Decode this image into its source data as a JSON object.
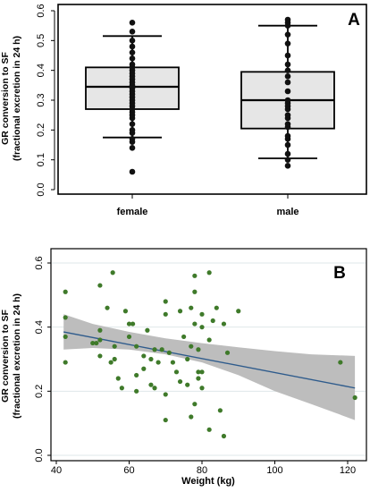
{
  "chart_data": [
    {
      "type": "box",
      "panel_label": "A",
      "ylabel": "GR conversion to SF",
      "ylabel2": "(fractional excretion in 24 h)",
      "categories": [
        "female",
        "male"
      ],
      "yticks": [
        "0.0",
        "0.1",
        "0.2",
        "0.3",
        "0.4",
        "0.5",
        "0.6"
      ],
      "ylim": [
        0,
        0.6
      ],
      "boxes": [
        {
          "category": "female",
          "whisker_low": 0.175,
          "q1": 0.27,
          "median": 0.345,
          "q3": 0.41,
          "whisker_high": 0.515
        },
        {
          "category": "male",
          "whisker_low": 0.105,
          "q1": 0.205,
          "median": 0.3,
          "q3": 0.395,
          "whisker_high": 0.55
        }
      ],
      "points": {
        "female": [
          0.06,
          0.14,
          0.16,
          0.17,
          0.19,
          0.2,
          0.22,
          0.24,
          0.25,
          0.26,
          0.27,
          0.28,
          0.29,
          0.3,
          0.31,
          0.32,
          0.33,
          0.34,
          0.35,
          0.36,
          0.37,
          0.38,
          0.39,
          0.4,
          0.41,
          0.42,
          0.44,
          0.46,
          0.48,
          0.5,
          0.53,
          0.56
        ],
        "male": [
          0.08,
          0.1,
          0.12,
          0.15,
          0.17,
          0.18,
          0.21,
          0.22,
          0.24,
          0.25,
          0.27,
          0.28,
          0.29,
          0.3,
          0.33,
          0.36,
          0.38,
          0.4,
          0.42,
          0.45,
          0.49,
          0.52,
          0.55,
          0.56,
          0.57
        ]
      },
      "colors": {
        "box_fill": "#e6e6e6",
        "point": "#111111"
      }
    },
    {
      "type": "scatter",
      "panel_label": "B",
      "ylabel": "GR conversion to SF",
      "ylabel2": "(fractional excretion in 24 h)",
      "xlabel": "Weight (kg)",
      "xticks": [
        "40",
        "60",
        "80",
        "100",
        "120"
      ],
      "yticks": [
        "0.0",
        "0.2",
        "0.4",
        "0.6"
      ],
      "xlim": [
        39,
        123
      ],
      "ylim": [
        -0.02,
        0.62
      ],
      "regression": {
        "x": [
          42,
          122
        ],
        "y": [
          0.385,
          0.21
        ]
      },
      "band_upper": {
        "x": [
          42,
          50,
          60,
          70,
          80,
          90,
          100,
          110,
          122
        ],
        "y": [
          0.44,
          0.41,
          0.385,
          0.365,
          0.35,
          0.337,
          0.325,
          0.315,
          0.31
        ]
      },
      "band_lower": {
        "x": [
          42,
          50,
          60,
          70,
          80,
          90,
          100,
          110,
          122
        ],
        "y": [
          0.33,
          0.335,
          0.33,
          0.315,
          0.29,
          0.25,
          0.2,
          0.16,
          0.11
        ]
      },
      "points": [
        {
          "x": 42.5,
          "y": 0.51
        },
        {
          "x": 42.5,
          "y": 0.43
        },
        {
          "x": 42.5,
          "y": 0.37
        },
        {
          "x": 42.5,
          "y": 0.29
        },
        {
          "x": 50,
          "y": 0.35
        },
        {
          "x": 51,
          "y": 0.35
        },
        {
          "x": 52,
          "y": 0.53
        },
        {
          "x": 52,
          "y": 0.39
        },
        {
          "x": 52,
          "y": 0.36
        },
        {
          "x": 52,
          "y": 0.31
        },
        {
          "x": 54,
          "y": 0.46
        },
        {
          "x": 55,
          "y": 0.29
        },
        {
          "x": 55.5,
          "y": 0.57
        },
        {
          "x": 56,
          "y": 0.34
        },
        {
          "x": 56,
          "y": 0.3
        },
        {
          "x": 57,
          "y": 0.24
        },
        {
          "x": 58,
          "y": 0.21
        },
        {
          "x": 59,
          "y": 0.45
        },
        {
          "x": 60,
          "y": 0.41
        },
        {
          "x": 60,
          "y": 0.37
        },
        {
          "x": 61,
          "y": 0.41
        },
        {
          "x": 62,
          "y": 0.34
        },
        {
          "x": 62,
          "y": 0.25
        },
        {
          "x": 62,
          "y": 0.2
        },
        {
          "x": 64,
          "y": 0.31
        },
        {
          "x": 64,
          "y": 0.27
        },
        {
          "x": 65,
          "y": 0.39
        },
        {
          "x": 66,
          "y": 0.3
        },
        {
          "x": 66,
          "y": 0.22
        },
        {
          "x": 67,
          "y": 0.21
        },
        {
          "x": 67,
          "y": 0.33
        },
        {
          "x": 68,
          "y": 0.29
        },
        {
          "x": 69,
          "y": 0.33
        },
        {
          "x": 70,
          "y": 0.48
        },
        {
          "x": 70,
          "y": 0.44
        },
        {
          "x": 70,
          "y": 0.19
        },
        {
          "x": 70,
          "y": 0.11
        },
        {
          "x": 71,
          "y": 0.32
        },
        {
          "x": 72,
          "y": 0.29
        },
        {
          "x": 73,
          "y": 0.26
        },
        {
          "x": 74,
          "y": 0.45
        },
        {
          "x": 74,
          "y": 0.23
        },
        {
          "x": 75,
          "y": 0.37
        },
        {
          "x": 76,
          "y": 0.3
        },
        {
          "x": 76,
          "y": 0.22
        },
        {
          "x": 77,
          "y": 0.46
        },
        {
          "x": 77,
          "y": 0.34
        },
        {
          "x": 77,
          "y": 0.12
        },
        {
          "x": 78,
          "y": 0.56
        },
        {
          "x": 78,
          "y": 0.51
        },
        {
          "x": 78,
          "y": 0.41
        },
        {
          "x": 78,
          "y": 0.16
        },
        {
          "x": 79,
          "y": 0.33
        },
        {
          "x": 79,
          "y": 0.26
        },
        {
          "x": 79,
          "y": 0.24
        },
        {
          "x": 80,
          "y": 0.44
        },
        {
          "x": 80,
          "y": 0.4
        },
        {
          "x": 80,
          "y": 0.26
        },
        {
          "x": 80,
          "y": 0.21
        },
        {
          "x": 82,
          "y": 0.57
        },
        {
          "x": 82,
          "y": 0.36
        },
        {
          "x": 82,
          "y": 0.08
        },
        {
          "x": 83,
          "y": 0.42
        },
        {
          "x": 84,
          "y": 0.46
        },
        {
          "x": 85,
          "y": 0.14
        },
        {
          "x": 86,
          "y": 0.41
        },
        {
          "x": 86,
          "y": 0.06
        },
        {
          "x": 87,
          "y": 0.32
        },
        {
          "x": 90,
          "y": 0.45
        },
        {
          "x": 118,
          "y": 0.29
        },
        {
          "x": 122,
          "y": 0.18
        }
      ],
      "colors": {
        "point": "#3f7a2a",
        "line": "#2e5b8c",
        "band": "#bdbdbd",
        "grid": "#dfe7ea"
      }
    }
  ]
}
